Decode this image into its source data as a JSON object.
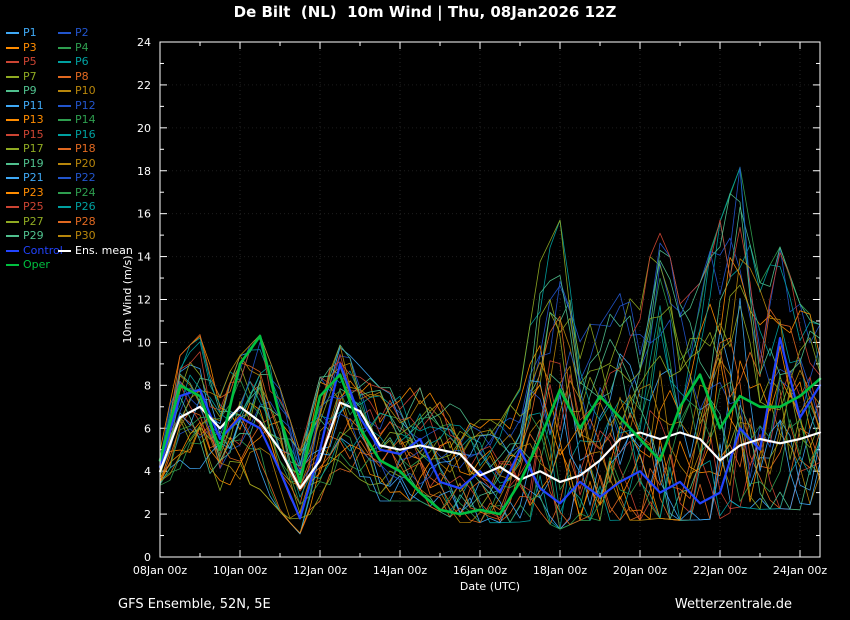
{
  "header": {
    "title": "De Bilt  (NL)  10m Wind | Thu, 08Jan2026 12Z"
  },
  "footer": {
    "left": "GFS Ensemble, 52N, 5E",
    "right": "Wetterzentrale.de"
  },
  "legend": {
    "control_label": "Control",
    "mean_label": "Ens. mean",
    "oper_label": "Oper"
  },
  "chart_data": {
    "type": "line",
    "title": "De Bilt  (NL)  10m Wind | Thu, 08Jan2026 12Z",
    "xlabel": "Date (UTC)",
    "ylabel": "10m Wind (m/s)",
    "ylim": [
      0,
      24
    ],
    "y_ticks": [
      0,
      2,
      4,
      6,
      8,
      10,
      12,
      14,
      16,
      18,
      20,
      22,
      24
    ],
    "x_days_range": [
      0,
      16.5
    ],
    "time_step_days": 0.5,
    "x_major_ticks": [
      {
        "day": 0,
        "label": "08Jan 00z"
      },
      {
        "day": 2,
        "label": "10Jan 00z"
      },
      {
        "day": 4,
        "label": "12Jan 00z"
      },
      {
        "day": 6,
        "label": "14Jan 00z"
      },
      {
        "day": 8,
        "label": "16Jan 00z"
      },
      {
        "day": 10,
        "label": "18Jan 00z"
      },
      {
        "day": 12,
        "label": "20Jan 00z"
      },
      {
        "day": 14,
        "label": "22Jan 00z"
      },
      {
        "day": 16,
        "label": "24Jan 00z"
      }
    ],
    "colors": {
      "control": "#2244ff",
      "ens_mean": "#ffffff",
      "oper": "#00c040"
    },
    "ens_mean": [
      4.0,
      6.5,
      7.0,
      6.0,
      7.0,
      6.3,
      5.0,
      3.2,
      4.5,
      7.2,
      6.8,
      5.2,
      5.0,
      5.2,
      5.0,
      4.8,
      3.8,
      4.2,
      3.6,
      4.0,
      3.5,
      3.8,
      4.5,
      5.5,
      5.8,
      5.5,
      5.8,
      5.5,
      4.5,
      5.2,
      5.5,
      5.3,
      5.5,
      5.8
    ],
    "control": [
      4.2,
      7.5,
      7.8,
      5.5,
      6.5,
      6.0,
      4.0,
      1.8,
      5.0,
      9.0,
      6.5,
      5.0,
      4.8,
      5.5,
      3.5,
      3.2,
      4.0,
      3.0,
      5.0,
      3.2,
      2.5,
      3.5,
      2.8,
      3.5,
      4.0,
      3.0,
      3.5,
      2.5,
      3.0,
      6.0,
      5.0,
      10.2,
      6.5,
      8.0
    ],
    "oper": [
      4.5,
      8.0,
      7.5,
      5.0,
      9.0,
      10.3,
      6.5,
      3.5,
      7.5,
      8.5,
      6.0,
      4.5,
      4.0,
      3.0,
      2.2,
      2.0,
      2.2,
      2.0,
      3.5,
      5.5,
      7.8,
      6.0,
      7.5,
      6.5,
      5.5,
      4.5,
      7.0,
      8.5,
      6.0,
      7.5,
      7.0,
      7.0,
      7.5,
      8.3
    ],
    "envelope_min": [
      3.0,
      4.0,
      4.0,
      3.0,
      3.5,
      3.0,
      2.0,
      1.0,
      2.5,
      4.0,
      3.5,
      2.5,
      2.5,
      2.5,
      2.0,
      1.5,
      1.5,
      1.5,
      1.5,
      1.5,
      1.0,
      1.5,
      1.5,
      1.5,
      1.5,
      1.5,
      1.5,
      1.5,
      1.5,
      2.0,
      2.0,
      2.0,
      2.0,
      2.5
    ],
    "envelope_max": [
      5.0,
      9.5,
      10.5,
      8.0,
      9.5,
      10.5,
      8.0,
      5.0,
      8.5,
      10.0,
      9.0,
      8.0,
      8.0,
      8.0,
      7.5,
      7.0,
      6.5,
      6.5,
      8.0,
      14.0,
      16.0,
      12.0,
      11.0,
      12.5,
      12.0,
      16.5,
      12.0,
      13.0,
      16.0,
      18.5,
      13.0,
      14.7,
      12.0,
      11.0
    ],
    "members": [
      {
        "name": "P1",
        "color": "#3fa9f5"
      },
      {
        "name": "P2",
        "color": "#2255cc"
      },
      {
        "name": "P3",
        "color": "#ff8c00"
      },
      {
        "name": "P4",
        "color": "#2e9e4f"
      },
      {
        "name": "P5",
        "color": "#cc4433"
      },
      {
        "name": "P6",
        "color": "#00a0a0"
      },
      {
        "name": "P7",
        "color": "#8faa22"
      },
      {
        "name": "P8",
        "color": "#e06820"
      },
      {
        "name": "P9",
        "color": "#4fc08d"
      },
      {
        "name": "P10",
        "color": "#b8860b"
      },
      {
        "name": "P11",
        "color": "#3fa9f5"
      },
      {
        "name": "P12",
        "color": "#2255cc"
      },
      {
        "name": "P13",
        "color": "#ff8c00"
      },
      {
        "name": "P14",
        "color": "#2e9e4f"
      },
      {
        "name": "P15",
        "color": "#cc4433"
      },
      {
        "name": "P16",
        "color": "#00a0a0"
      },
      {
        "name": "P17",
        "color": "#8faa22"
      },
      {
        "name": "P18",
        "color": "#e06820"
      },
      {
        "name": "P19",
        "color": "#4fc08d"
      },
      {
        "name": "P20",
        "color": "#b8860b"
      },
      {
        "name": "P21",
        "color": "#3fa9f5"
      },
      {
        "name": "P22",
        "color": "#2255cc"
      },
      {
        "name": "P23",
        "color": "#ff8c00"
      },
      {
        "name": "P24",
        "color": "#2e9e4f"
      },
      {
        "name": "P25",
        "color": "#cc4433"
      },
      {
        "name": "P26",
        "color": "#00a0a0"
      },
      {
        "name": "P27",
        "color": "#8faa22"
      },
      {
        "name": "P28",
        "color": "#e06820"
      },
      {
        "name": "P29",
        "color": "#4fc08d"
      },
      {
        "name": "P30",
        "color": "#b8860b"
      }
    ]
  }
}
